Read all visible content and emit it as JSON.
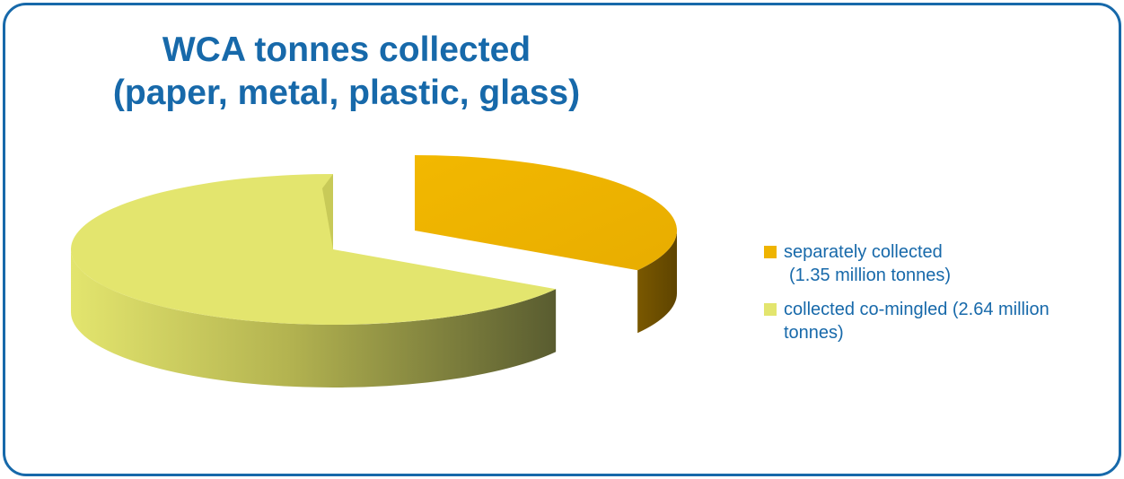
{
  "chart_data": {
    "type": "pie",
    "title_lines": [
      "WCA tonnes collected",
      "(paper, metal, plastic, glass)"
    ],
    "series": [
      {
        "name": "separately collected (1.35 million tonnes)",
        "label_lines": [
          "separately collected",
          "(1.35 million tonnes)"
        ],
        "value": 1.35,
        "color": "#efb400",
        "side_color": "#6b4d00"
      },
      {
        "name": "collected co-mingled (2.64 million tonnes)",
        "label_lines": [
          "collected co-mingled (2.64 million",
          "tonnes)"
        ],
        "value": 2.64,
        "color": "#e3e56e",
        "side_color": "#5a5e30"
      }
    ],
    "exploded": true,
    "legend_position": "right"
  },
  "colors": {
    "frame": "#1769aa",
    "text": "#1769aa"
  }
}
